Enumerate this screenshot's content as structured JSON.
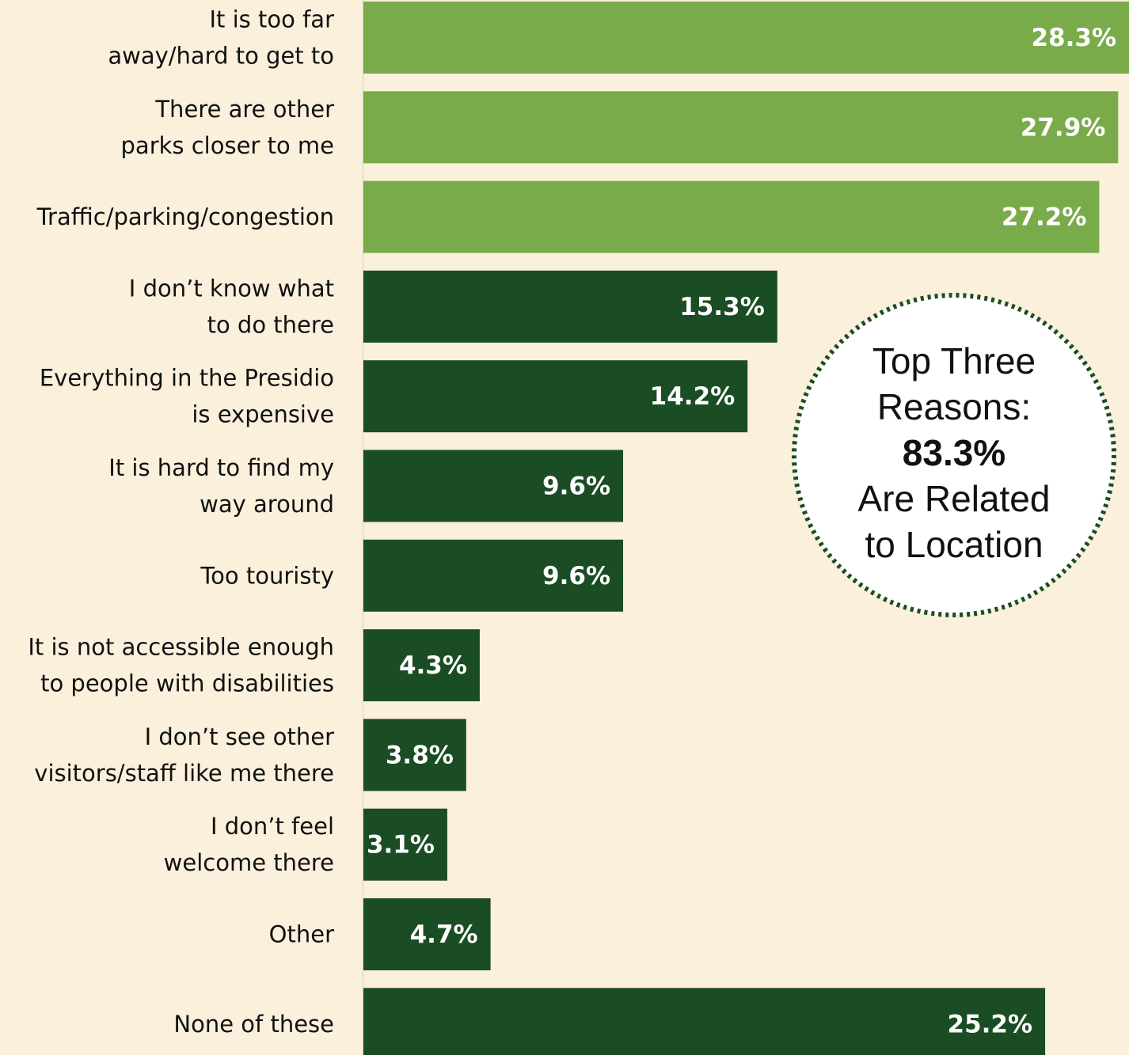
{
  "chart_data": {
    "type": "bar",
    "orientation": "horizontal",
    "categories": [
      "It is too far\naway/hard to get to",
      "There are other\nparks closer to me",
      "Traffic/parking/congestion",
      "I don’t know what\nto do there",
      "Everything in the Presidio\nis expensive",
      "It is hard to find my\nway around",
      "Too touristy",
      "It is not accessible enough\nto people with disabilities",
      "I don’t see other\nvisitors/staff like me there",
      "I don’t feel\nwelcome there",
      "Other",
      "None of these"
    ],
    "values": [
      28.3,
      27.9,
      27.2,
      15.3,
      14.2,
      9.6,
      9.6,
      4.3,
      3.8,
      3.1,
      4.7,
      25.2
    ],
    "value_labels": [
      "28.3%",
      "27.9%",
      "27.2%",
      "15.3%",
      "14.2%",
      "9.6%",
      "9.6%",
      "4.3%",
      "3.8%",
      "3.1%",
      "4.7%",
      "25.2%"
    ],
    "colors": [
      "#7aab4a",
      "#7aab4a",
      "#7aab4a",
      "#1b4d24",
      "#1b4d24",
      "#1b4d24",
      "#1b4d24",
      "#1b4d24",
      "#1b4d24",
      "#1b4d24",
      "#1b4d24",
      "#1b4d24"
    ],
    "xlim": [
      0,
      28.3
    ],
    "annotation": [
      "Top Three",
      "Reasons:",
      "83.3%",
      "Are Related",
      "to Location"
    ]
  }
}
